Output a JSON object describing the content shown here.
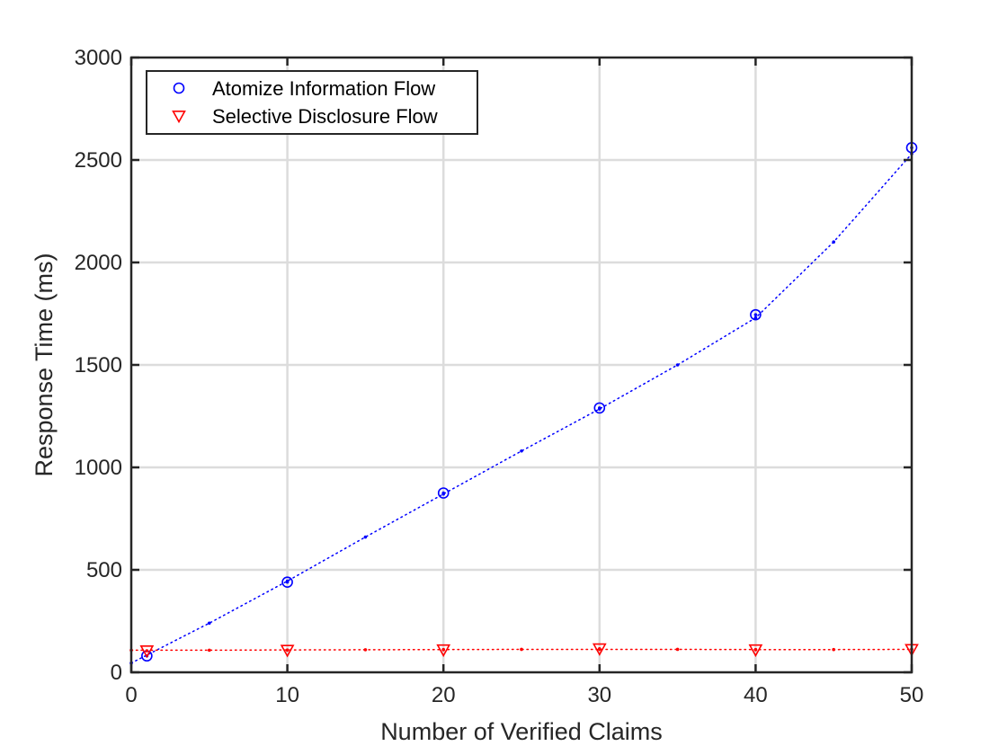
{
  "chart_data": {
    "type": "line",
    "title": "",
    "xlabel": "Number of Verified Claims",
    "ylabel": "Response Time (ms)",
    "xlim": [
      0,
      50
    ],
    "ylim": [
      0,
      3000
    ],
    "xticks": [
      0,
      10,
      20,
      30,
      40,
      50
    ],
    "yticks": [
      0,
      500,
      1000,
      1500,
      2000,
      2500,
      3000
    ],
    "xtick_labels": [
      "0",
      "10",
      "20",
      "30",
      "40",
      "50"
    ],
    "ytick_labels": [
      "0",
      "500",
      "1000",
      "1500",
      "2000",
      "2500",
      "3000"
    ],
    "grid": true,
    "legend_position": "top-left",
    "series": [
      {
        "name": "Atomize Information Flow",
        "color": "#0000ff",
        "marker": "circle",
        "line_style": "dotted",
        "markers": {
          "x": [
            1,
            10,
            20,
            30,
            40,
            50
          ],
          "y": [
            80,
            440,
            875,
            1290,
            1745,
            2560
          ]
        },
        "fit": {
          "x": [
            0,
            5,
            10,
            15,
            20,
            25,
            30,
            35,
            40,
            45,
            50
          ],
          "y": [
            45,
            240,
            445,
            660,
            870,
            1080,
            1285,
            1500,
            1730,
            2100,
            2530
          ]
        }
      },
      {
        "name": "Selective Disclosure Flow",
        "color": "#ff0000",
        "marker": "triangle-down",
        "line_style": "dotted",
        "markers": {
          "x": [
            1,
            10,
            20,
            30,
            40,
            50
          ],
          "y": [
            105,
            108,
            110,
            115,
            110,
            112
          ]
        },
        "fit": {
          "x": [
            0,
            5,
            10,
            15,
            20,
            25,
            30,
            35,
            40,
            45,
            50
          ],
          "y": [
            108,
            108,
            109,
            110,
            111,
            112,
            112,
            112,
            111,
            111,
            112
          ]
        }
      }
    ]
  }
}
